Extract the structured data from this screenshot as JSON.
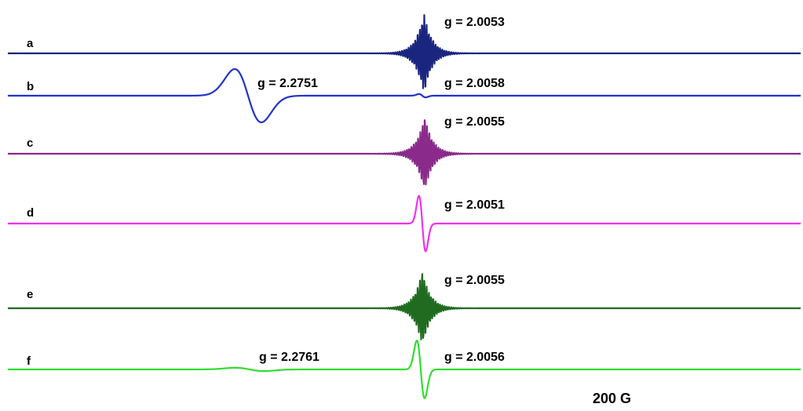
{
  "chart_data": {
    "type": "line",
    "title": "",
    "xlabel": "",
    "ylabel": "",
    "grid": false,
    "scale_bar": "200 G",
    "series": [
      {
        "name": "a",
        "color": "#1a2580",
        "features": [
          {
            "type": "hyperfine",
            "center": 540,
            "amp": 52,
            "decay": 10,
            "freq": 2.2,
            "phase": 0.3
          }
        ],
        "g_labels": [
          "g = 2.0053"
        ]
      },
      {
        "name": "b",
        "color": "#2233cc",
        "features": [
          {
            "type": "derivative",
            "center": 316,
            "amp": 48,
            "width": 24
          },
          {
            "type": "derivative",
            "center": 538,
            "amp": 3,
            "width": 6
          }
        ],
        "g_labels": [
          "g = 2.2751",
          "g = 2.0058"
        ]
      },
      {
        "name": "c",
        "color": "#8a2a8a",
        "features": [
          {
            "type": "hyperfine",
            "center": 541,
            "amp": 48,
            "decay": 10,
            "freq": 2.2,
            "phase": 1.1
          }
        ],
        "g_labels": [
          "g = 2.0055"
        ]
      },
      {
        "name": "d",
        "color": "#ee33ee",
        "features": [
          {
            "type": "derivative",
            "center": 538,
            "amp": 50,
            "width": 6
          }
        ],
        "g_labels": [
          "g = 2.0051"
        ]
      },
      {
        "name": "e",
        "color": "#1f6b1f",
        "features": [
          {
            "type": "hyperfine",
            "center": 538,
            "amp": 48,
            "decay": 10,
            "freq": 2.2,
            "phase": 2.0
          }
        ],
        "g_labels": [
          "g = 2.0055"
        ]
      },
      {
        "name": "f",
        "color": "#33dd33",
        "features": [
          {
            "type": "derivative",
            "center": 536,
            "amp": 52,
            "width": 7
          },
          {
            "type": "derivative",
            "center": 318,
            "amp": 3,
            "width": 26
          }
        ],
        "g_labels": [
          "g = 2.2761",
          "g = 2.0056"
        ]
      }
    ]
  }
}
